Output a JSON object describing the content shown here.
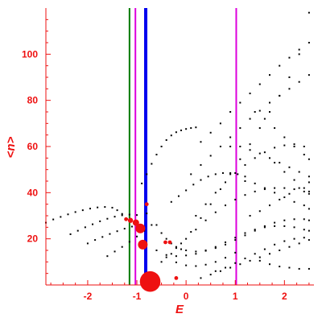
{
  "colors": {
    "axis": "#ee1111",
    "points": "#000000",
    "highlight": "#ee1111",
    "vline_green": "#007a00",
    "vline_magenta": "#dd00dd",
    "vline_blue": "#0000ee"
  },
  "chart_data": {
    "type": "scatter",
    "xlabel": "E",
    "ylabel": "<n>",
    "xlim": [
      -2.85,
      2.6
    ],
    "ylim": [
      0,
      120
    ],
    "xticks": [
      -2,
      -1,
      0,
      1,
      2
    ],
    "yticks": [
      20,
      40,
      60,
      80,
      100
    ],
    "grid": false,
    "legend": "none",
    "vertical_lines": [
      {
        "x": -1.15,
        "color": "green"
      },
      {
        "x": -1.03,
        "color": "magenta"
      },
      {
        "x": -0.82,
        "color": "blue"
      },
      {
        "x": 1.02,
        "color": "magenta"
      }
    ],
    "highlighted_points": [
      {
        "x": -0.73,
        "y": 1.5,
        "size": 3.2
      },
      {
        "x": -0.88,
        "y": 17.5,
        "size": 1.5
      },
      {
        "x": -0.93,
        "y": 24.5,
        "size": 1.5
      },
      {
        "x": -1.02,
        "y": 27,
        "size": 1.0
      },
      {
        "x": -1.13,
        "y": 28,
        "size": 0.8
      },
      {
        "x": -1.22,
        "y": 28.5,
        "size": 0.6
      },
      {
        "x": -0.8,
        "y": 35,
        "size": 0.6
      },
      {
        "x": -0.42,
        "y": 18.5,
        "size": 0.6
      },
      {
        "x": -0.33,
        "y": 18.5,
        "size": 0.6
      },
      {
        "x": -0.2,
        "y": 3,
        "size": 0.6
      }
    ],
    "series": [
      {
        "x": [
          -2.85,
          -2.7,
          -2.55,
          -2.4,
          -2.25,
          -2.1,
          -1.95,
          -1.8,
          -1.65,
          -1.5,
          -1.4,
          -1.3,
          -1.2
        ],
        "y": [
          27,
          28.4,
          29.5,
          30.6,
          31.6,
          32.4,
          33.1,
          33.6,
          33.8,
          33.5,
          32.4,
          30.8,
          28.6
        ]
      },
      {
        "x": [
          -2.35,
          -2.2,
          -2.05,
          -1.9,
          -1.75,
          -1.6,
          -1.45,
          -1.3,
          -1.15,
          -1.0
        ],
        "y": [
          22,
          23.5,
          25,
          26.3,
          27.6,
          28.7,
          29.6,
          30.2,
          30.5,
          30.3
        ]
      },
      {
        "x": [
          -2.0,
          -1.85,
          -1.7,
          -1.55,
          -1.4,
          -1.25,
          -1.1,
          -0.95
        ],
        "y": [
          18,
          19.5,
          20.8,
          22.1,
          23.3,
          24.4,
          25.3,
          26
        ]
      },
      {
        "x": [
          -1.6,
          -1.45,
          -1.3,
          -1.15,
          -1.0,
          -0.85,
          -0.7
        ],
        "y": [
          12.5,
          14.5,
          16.5,
          18.7,
          21,
          23.5,
          26
        ]
      },
      {
        "x": [
          -0.9,
          -0.8,
          -0.7,
          -0.6,
          -0.5,
          -0.4,
          -0.3,
          -0.2,
          -0.1,
          0.0,
          0.1,
          0.2
        ],
        "y": [
          44,
          48,
          52.5,
          56.5,
          60,
          62.8,
          64.8,
          66.2,
          67,
          67.6,
          68,
          68.3
        ]
      },
      {
        "x": [
          -0.5,
          -0.3,
          -0.1,
          0.1,
          0.3,
          0.5,
          0.7,
          0.9,
          1.1,
          1.3,
          1.5,
          1.7,
          1.9,
          2.1,
          2.3,
          2.5
        ],
        "y": [
          10,
          13.5,
          18,
          23,
          29,
          35,
          41.5,
          48,
          54.5,
          61,
          68,
          75,
          82,
          90,
          100,
          118
        ]
      },
      {
        "x": [
          0.3,
          0.5,
          0.7,
          0.9,
          1.1,
          1.3,
          1.5,
          1.7,
          1.9,
          2.1,
          2.3,
          2.5
        ],
        "y": [
          62,
          66,
          70,
          75,
          79,
          83,
          87,
          91,
          95,
          98.5,
          102,
          105
        ]
      },
      {
        "x": [
          0.1,
          0.3,
          0.5,
          0.7,
          0.9,
          1.1,
          1.3,
          1.5,
          1.7,
          1.9,
          2.1,
          2.3,
          2.5
        ],
        "y": [
          48,
          52,
          56,
          60,
          64,
          68,
          72,
          75.5,
          79,
          82,
          85,
          88,
          91
        ]
      },
      {
        "x": [
          0.2,
          0.4,
          0.6,
          0.8,
          1.0,
          1.2,
          1.4,
          1.6,
          1.8,
          2.0,
          2.2,
          2.4
        ],
        "y": [
          30,
          35,
          40,
          44.5,
          48.5,
          52,
          55,
          57.5,
          59.5,
          60.5,
          61,
          60
        ]
      },
      {
        "x": [
          0.0,
          0.2,
          0.4,
          0.6,
          0.8,
          1.0,
          1.2,
          1.4,
          1.6,
          1.8,
          2.0,
          2.2,
          2.4,
          2.5
        ],
        "y": [
          20,
          24,
          28,
          31.5,
          34.5,
          37,
          39,
          40.5,
          41.5,
          42,
          42,
          41.5,
          40.5,
          39.5
        ]
      },
      {
        "x": [
          0.9,
          1.1,
          1.3,
          1.5,
          1.7,
          1.9,
          2.1,
          2.3,
          2.5
        ],
        "y": [
          60,
          60,
          58.5,
          57,
          55,
          53,
          51,
          49,
          47
        ]
      },
      {
        "x": [
          1.4,
          1.6,
          1.8,
          2.0,
          2.2,
          2.4,
          2.5
        ],
        "y": [
          75,
          72,
          68,
          64,
          60,
          56.5,
          54.5
        ]
      },
      {
        "x": [
          1.2,
          1.4,
          1.6,
          1.8,
          2.0,
          2.2,
          2.4,
          2.5
        ],
        "y": [
          45,
          44,
          42,
          40,
          38,
          36,
          34.5,
          33
        ]
      },
      {
        "x": [
          -0.4,
          -0.2,
          0.0,
          0.2,
          0.4,
          0.6,
          0.8,
          1.0,
          1.2,
          1.4,
          1.6,
          1.8,
          2.0,
          2.2,
          2.4,
          2.5
        ],
        "y": [
          13,
          12.5,
          12.8,
          13.5,
          14.8,
          16.5,
          18.5,
          20.5,
          22.5,
          24,
          25,
          25.5,
          25.5,
          25,
          24,
          23.5
        ]
      },
      {
        "x": [
          -0.2,
          0.0,
          0.2,
          0.4,
          0.6,
          0.8,
          1.0,
          1.2,
          1.4,
          1.6,
          1.8,
          2.0,
          2.2,
          2.4,
          2.5
        ],
        "y": [
          16,
          15,
          14.5,
          15,
          16,
          17.5,
          19.5,
          21.5,
          23.5,
          25.5,
          27,
          28,
          28.5,
          28.5,
          28
        ]
      },
      {
        "x": [
          0.6,
          0.8,
          1.0,
          1.2,
          1.4,
          1.6,
          1.8,
          2.0,
          2.2,
          2.4
        ],
        "y": [
          6,
          7.5,
          9.5,
          11.5,
          13.5,
          15.5,
          17.5,
          19,
          20,
          20.5
        ]
      },
      {
        "x": [
          -0.6,
          -0.4,
          -0.2,
          0.0,
          0.2,
          0.4,
          0.6,
          0.8,
          1.0
        ],
        "y": [
          15,
          12,
          9.8,
          8.5,
          8.2,
          8.8,
          10,
          11.8,
          14
        ]
      },
      {
        "x": [
          0.3,
          0.5,
          0.7,
          0.9,
          1.1,
          1.3,
          1.5,
          1.7,
          1.9,
          2.1,
          2.3,
          2.5
        ],
        "y": [
          3,
          4.5,
          6,
          7.5,
          9,
          10.5,
          12,
          13.5,
          15,
          16.5,
          18,
          19.5
        ]
      },
      {
        "x": [
          1.8,
          2.0,
          2.2,
          2.4,
          2.5
        ],
        "y": [
          53,
          49,
          45.5,
          42,
          40.5
        ]
      },
      {
        "x": [
          1.3,
          1.5,
          1.7,
          1.9,
          2.1,
          2.3,
          2.5
        ],
        "y": [
          30,
          32,
          34.5,
          37,
          39.5,
          42,
          44.5
        ]
      },
      {
        "x": [
          1.5,
          1.7,
          1.9,
          2.1,
          2.3,
          2.5
        ],
        "y": [
          10.5,
          9,
          8,
          7.5,
          7,
          7
        ]
      },
      {
        "x": [
          -0.8,
          -0.6,
          -0.5,
          -0.4,
          -0.3,
          -0.2,
          -0.1
        ],
        "y": [
          31,
          26,
          22.5,
          20,
          18,
          16.5,
          15.5
        ]
      },
      {
        "x": [
          -0.3,
          -0.15,
          0.0,
          0.15,
          0.3,
          0.45,
          0.6,
          0.75,
          0.9,
          1.05,
          1.2
        ],
        "y": [
          36,
          38.5,
          41,
          43.5,
          45.5,
          47,
          48,
          48.5,
          48.5,
          48,
          47
        ]
      }
    ]
  }
}
